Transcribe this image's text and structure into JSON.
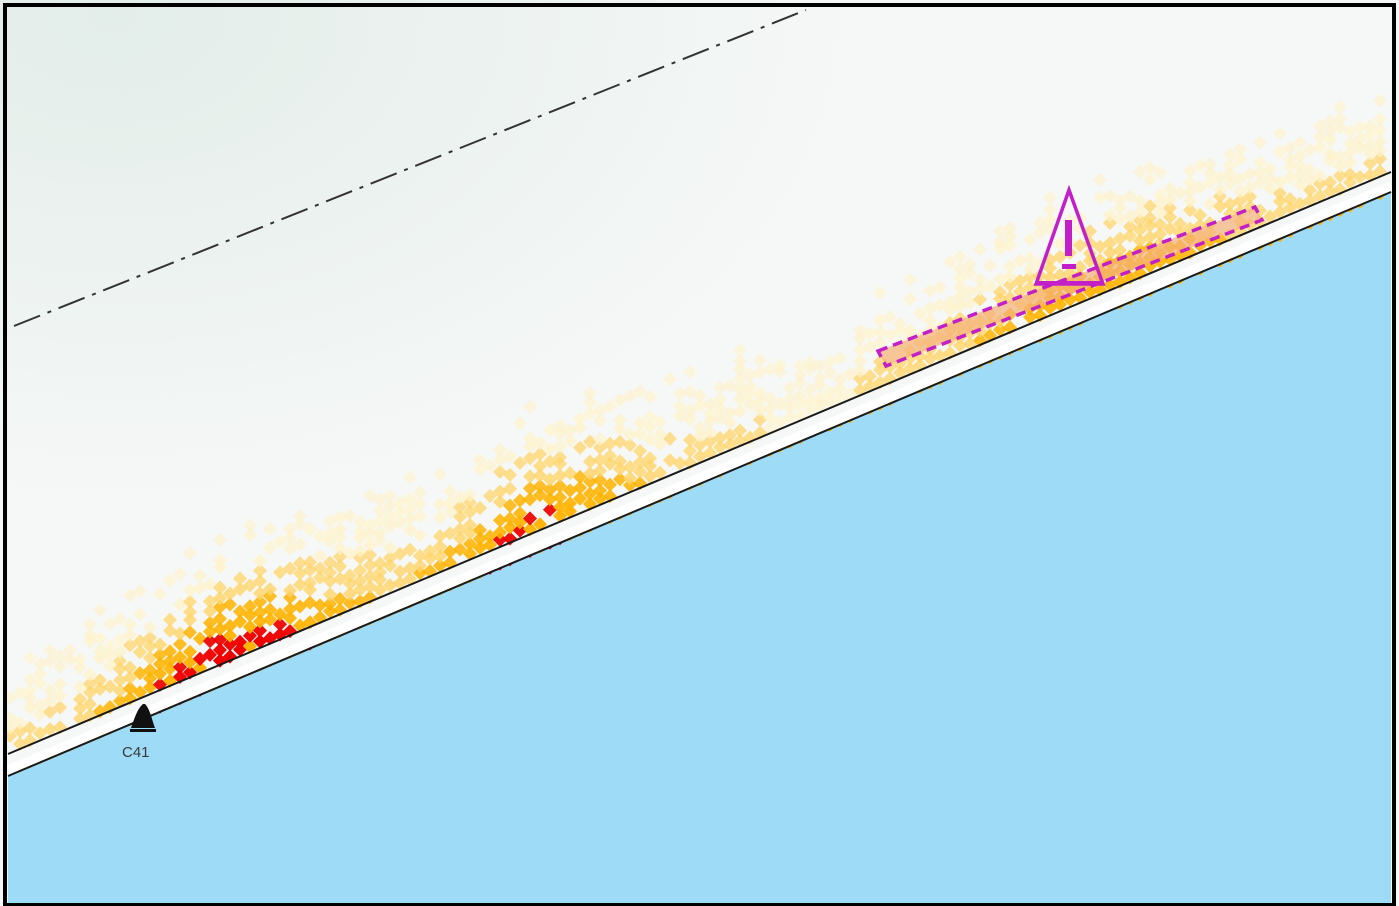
{
  "map": {
    "colors": {
      "sea": "#9ddbf7",
      "land": "#f6f8f7",
      "land_shade": "#e6efeb",
      "frame": "#000000",
      "coastline": "#1a1a1a",
      "boundary_line": "#333333",
      "heat_low": "#fff2c6",
      "heat_mid": "#ffd56a",
      "heat_high": "#ffb300",
      "heat_max": "#ee0000",
      "alert": "#c21fc8",
      "alert_fill": "#f3b07a"
    },
    "marker": {
      "label": "C41",
      "icon": "bell-marker-icon"
    },
    "alert": {
      "icon": "warning-triangle-icon",
      "symbol": "!"
    },
    "layers": [
      "sea",
      "land",
      "boundary-line",
      "coastline",
      "density-heatmap",
      "alert-zone"
    ]
  }
}
